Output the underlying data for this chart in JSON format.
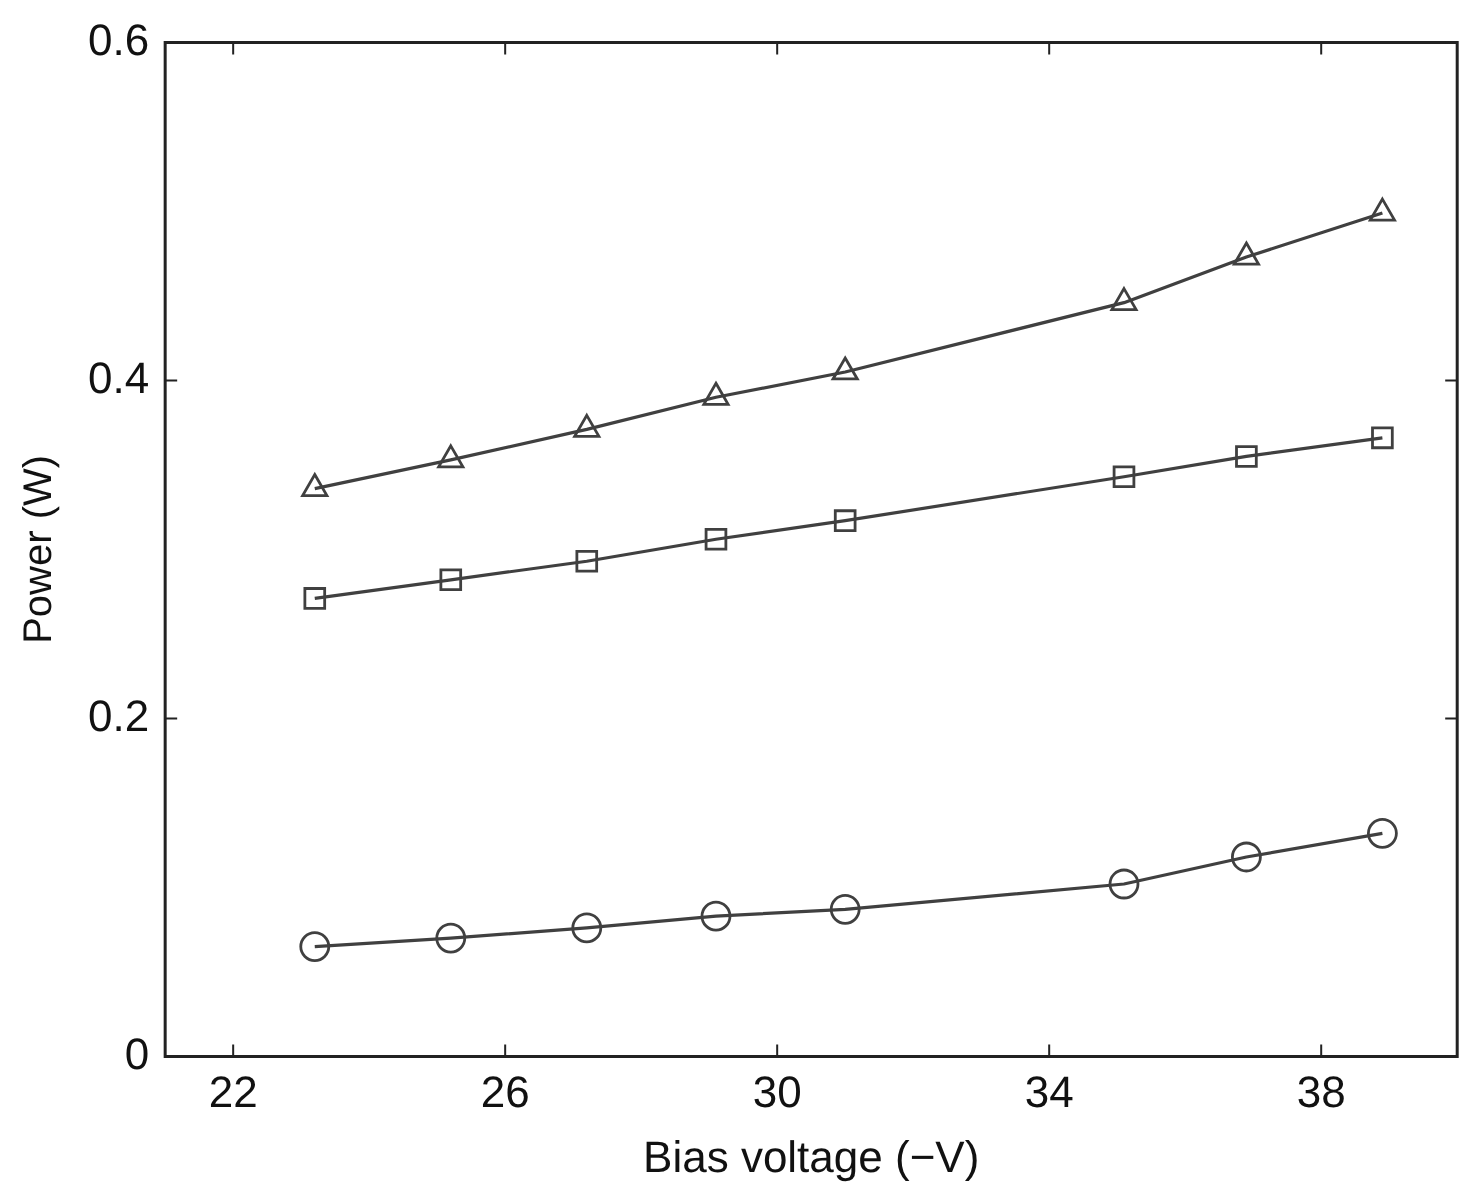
{
  "chart_data": {
    "type": "line",
    "xlabel": "Bias voltage (−V)",
    "ylabel": "Power (W)",
    "xlim": [
      21,
      40
    ],
    "xticks": [
      22,
      26,
      30,
      34,
      38
    ],
    "ylim": [
      0,
      0.6
    ],
    "yticks": [
      0,
      0.2,
      0.4,
      0.6
    ],
    "grid": false,
    "legend": false,
    "line_style": "solid",
    "series": [
      {
        "color": "#404040",
        "marker": "triangle",
        "x": [
          23.2,
          25.2,
          27.2,
          29.1,
          31,
          35.1,
          36.9,
          38.9
        ],
        "values": [
          0.336,
          0.353,
          0.371,
          0.39,
          0.405,
          0.446,
          0.473,
          0.499
        ]
      },
      {
        "color": "#404040",
        "marker": "square",
        "x": [
          23.2,
          25.2,
          27.2,
          29.1,
          31,
          35.1,
          36.9,
          38.9
        ],
        "values": [
          0.271,
          0.282,
          0.293,
          0.306,
          0.317,
          0.343,
          0.355,
          0.366
        ]
      },
      {
        "color": "#404040",
        "marker": "circle",
        "x": [
          23.2,
          25.2,
          27.2,
          29.1,
          31,
          35.1,
          36.9,
          38.9
        ],
        "values": [
          0.065,
          0.07,
          0.076,
          0.083,
          0.087,
          0.102,
          0.118,
          0.132
        ]
      }
    ]
  }
}
